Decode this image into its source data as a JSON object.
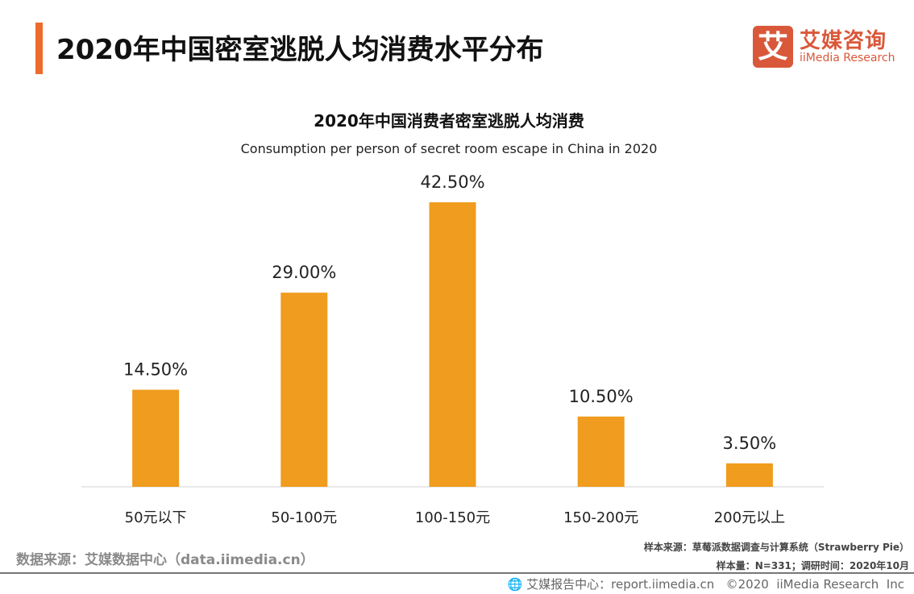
{
  "header": {
    "title": "2020年中国密室逃脱人均消费水平分布"
  },
  "logo": {
    "mark": "艾",
    "cn": "艾媒咨询",
    "en": "iiMedia Research"
  },
  "colors": {
    "accent": "#ec6b2d",
    "bar": "#f09c1e",
    "logo": "#d9583a"
  },
  "chart_data": {
    "type": "bar",
    "title": "2020年中国消费者密室逃脱人均消费",
    "subtitle": "Consumption per person of secret room escape in China in 2020",
    "categories": [
      "50元以下",
      "50-100元",
      "100-150元",
      "150-200元",
      "200元以上"
    ],
    "values": [
      14.5,
      29.0,
      42.5,
      10.5,
      3.5
    ],
    "labels": [
      "14.50%",
      "29.00%",
      "42.50%",
      "10.50%",
      "3.50%"
    ],
    "unit": "%",
    "ylim": [
      0,
      42.5
    ],
    "grid": false,
    "legend": "none"
  },
  "source": {
    "left": "数据来源：艾媒数据中心（data.iimedia.cn）",
    "sample_source": "样本来源：草莓派数据调查与计算系统（Strawberry Pie）",
    "sample_info": "样本量：N=331；调研时间：2020年10月"
  },
  "footer": {
    "icon": "globe-icon",
    "text": "艾媒报告中心：report.iimedia.cn   ©2020  iiMedia Research  Inc"
  }
}
